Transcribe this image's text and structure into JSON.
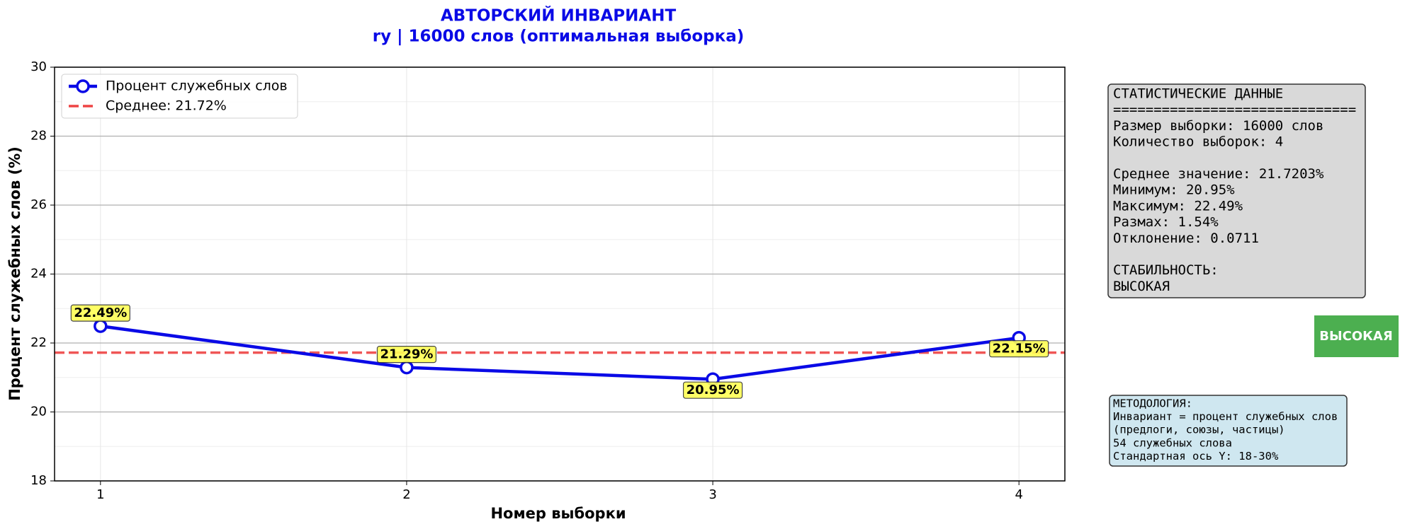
{
  "chart_data": {
    "type": "line",
    "title": "АВТОРСКИЙ ИНВАРИАНТ",
    "subtitle": "ry | 16000 слов (оптимальная выборка)",
    "x_label": "Номер выборки",
    "y_label": "Процент служебных слов (%)",
    "x": [
      1,
      2,
      3,
      4
    ],
    "xlim": [
      0.85,
      4.15
    ],
    "xticks": [
      1,
      2,
      3,
      4
    ],
    "ylim": [
      18,
      30
    ],
    "yticks": [
      18,
      20,
      22,
      24,
      26,
      28,
      30
    ],
    "y_minor_ticks": [
      19,
      21,
      23,
      25,
      27,
      29
    ],
    "grid": true,
    "legend": "upper left",
    "series": [
      {
        "name": "Процент служебных слов",
        "color": "#0a0ae6",
        "values": [
          22.49,
          21.29,
          20.95,
          22.15
        ],
        "value_labels": [
          "22.49%",
          "21.29%",
          "20.95%",
          "22.15%"
        ]
      }
    ],
    "mean_line": {
      "name": "Среднее: 21.72%",
      "value": 21.72,
      "color": "#ee4444"
    }
  },
  "stats_box": {
    "groups": [
      [
        "СТАТИСТИЧЕСКИЕ ДАННЫЕ",
        "==============================",
        "Размер выборки: 16000 слов",
        "Количество выборок: 4"
      ],
      [
        "Среднее значение: 21.7203%",
        "Минимум: 20.95%",
        "Максимум: 22.49%",
        "Размах: 1.54%",
        "Отклонение: 0.0711"
      ],
      [
        "СТАБИЛЬНОСТЬ:",
        "  ВЫСОКАЯ"
      ]
    ]
  },
  "badge": "ВЫСОКАЯ",
  "methodology": [
    "МЕТОДОЛОГИЯ:",
    "Инвариант = процент служебных слов",
    "(предлоги, союзы, частицы)",
    "54 служебных слова",
    "Стандартная ось Y: 18-30%"
  ]
}
